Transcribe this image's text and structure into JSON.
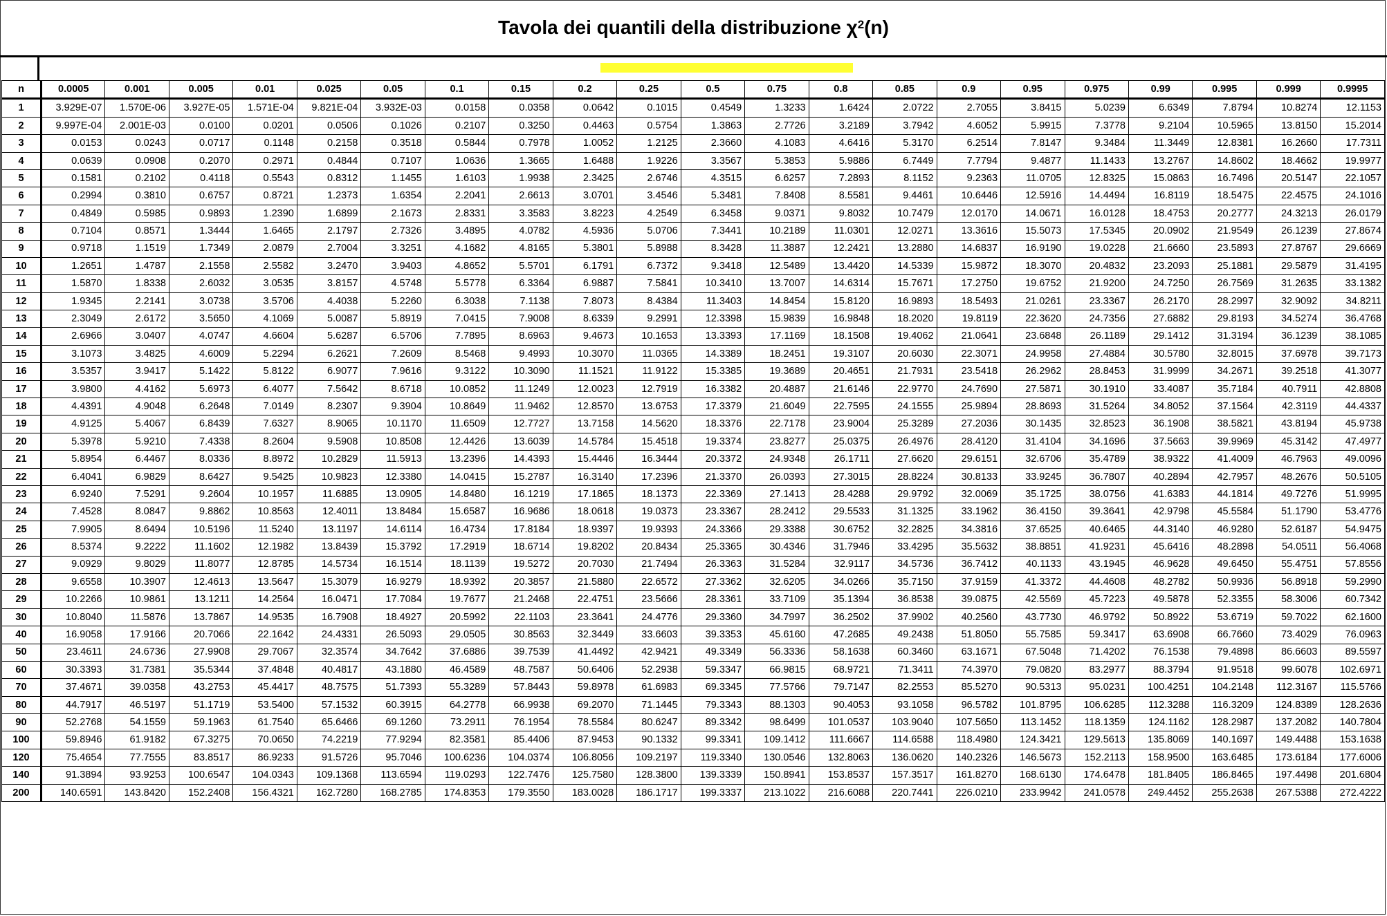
{
  "title": {
    "prefix": "Tavola dei quantili della distribuzione χ",
    "sup": "2",
    "suffix": "(n)"
  },
  "highlight_color": "#ffff33",
  "header": {
    "n_label": "n",
    "probabilities": [
      "0.0005",
      "0.001",
      "0.005",
      "0.01",
      "0.025",
      "0.05",
      "0.1",
      "0.15",
      "0.2",
      "0.25",
      "0.5",
      "0.75",
      "0.8",
      "0.85",
      "0.9",
      "0.95",
      "0.975",
      "0.99",
      "0.995",
      "0.999",
      "0.9995"
    ]
  },
  "rows": [
    {
      "n": "1",
      "values": [
        "3.929E-07",
        "1.570E-06",
        "3.927E-05",
        "1.571E-04",
        "9.821E-04",
        "3.932E-03",
        "0.0158",
        "0.0358",
        "0.0642",
        "0.1015",
        "0.4549",
        "1.3233",
        "1.6424",
        "2.0722",
        "2.7055",
        "3.8415",
        "5.0239",
        "6.6349",
        "7.8794",
        "10.8274",
        "12.1153"
      ]
    },
    {
      "n": "2",
      "values": [
        "9.997E-04",
        "2.001E-03",
        "0.0100",
        "0.0201",
        "0.0506",
        "0.1026",
        "0.2107",
        "0.3250",
        "0.4463",
        "0.5754",
        "1.3863",
        "2.7726",
        "3.2189",
        "3.7942",
        "4.6052",
        "5.9915",
        "7.3778",
        "9.2104",
        "10.5965",
        "13.8150",
        "15.2014"
      ]
    },
    {
      "n": "3",
      "values": [
        "0.0153",
        "0.0243",
        "0.0717",
        "0.1148",
        "0.2158",
        "0.3518",
        "0.5844",
        "0.7978",
        "1.0052",
        "1.2125",
        "2.3660",
        "4.1083",
        "4.6416",
        "5.3170",
        "6.2514",
        "7.8147",
        "9.3484",
        "11.3449",
        "12.8381",
        "16.2660",
        "17.7311"
      ]
    },
    {
      "n": "4",
      "values": [
        "0.0639",
        "0.0908",
        "0.2070",
        "0.2971",
        "0.4844",
        "0.7107",
        "1.0636",
        "1.3665",
        "1.6488",
        "1.9226",
        "3.3567",
        "5.3853",
        "5.9886",
        "6.7449",
        "7.7794",
        "9.4877",
        "11.1433",
        "13.2767",
        "14.8602",
        "18.4662",
        "19.9977"
      ]
    },
    {
      "n": "5",
      "values": [
        "0.1581",
        "0.2102",
        "0.4118",
        "0.5543",
        "0.8312",
        "1.1455",
        "1.6103",
        "1.9938",
        "2.3425",
        "2.6746",
        "4.3515",
        "6.6257",
        "7.2893",
        "8.1152",
        "9.2363",
        "11.0705",
        "12.8325",
        "15.0863",
        "16.7496",
        "20.5147",
        "22.1057"
      ]
    },
    {
      "n": "6",
      "values": [
        "0.2994",
        "0.3810",
        "0.6757",
        "0.8721",
        "1.2373",
        "1.6354",
        "2.2041",
        "2.6613",
        "3.0701",
        "3.4546",
        "5.3481",
        "7.8408",
        "8.5581",
        "9.4461",
        "10.6446",
        "12.5916",
        "14.4494",
        "16.8119",
        "18.5475",
        "22.4575",
        "24.1016"
      ]
    },
    {
      "n": "7",
      "values": [
        "0.4849",
        "0.5985",
        "0.9893",
        "1.2390",
        "1.6899",
        "2.1673",
        "2.8331",
        "3.3583",
        "3.8223",
        "4.2549",
        "6.3458",
        "9.0371",
        "9.8032",
        "10.7479",
        "12.0170",
        "14.0671",
        "16.0128",
        "18.4753",
        "20.2777",
        "24.3213",
        "26.0179"
      ]
    },
    {
      "n": "8",
      "values": [
        "0.7104",
        "0.8571",
        "1.3444",
        "1.6465",
        "2.1797",
        "2.7326",
        "3.4895",
        "4.0782",
        "4.5936",
        "5.0706",
        "7.3441",
        "10.2189",
        "11.0301",
        "12.0271",
        "13.3616",
        "15.5073",
        "17.5345",
        "20.0902",
        "21.9549",
        "26.1239",
        "27.8674"
      ]
    },
    {
      "n": "9",
      "values": [
        "0.9718",
        "1.1519",
        "1.7349",
        "2.0879",
        "2.7004",
        "3.3251",
        "4.1682",
        "4.8165",
        "5.3801",
        "5.8988",
        "8.3428",
        "11.3887",
        "12.2421",
        "13.2880",
        "14.6837",
        "16.9190",
        "19.0228",
        "21.6660",
        "23.5893",
        "27.8767",
        "29.6669"
      ]
    },
    {
      "n": "10",
      "values": [
        "1.2651",
        "1.4787",
        "2.1558",
        "2.5582",
        "3.2470",
        "3.9403",
        "4.8652",
        "5.5701",
        "6.1791",
        "6.7372",
        "9.3418",
        "12.5489",
        "13.4420",
        "14.5339",
        "15.9872",
        "18.3070",
        "20.4832",
        "23.2093",
        "25.1881",
        "29.5879",
        "31.4195"
      ]
    },
    {
      "n": "11",
      "values": [
        "1.5870",
        "1.8338",
        "2.6032",
        "3.0535",
        "3.8157",
        "4.5748",
        "5.5778",
        "6.3364",
        "6.9887",
        "7.5841",
        "10.3410",
        "13.7007",
        "14.6314",
        "15.7671",
        "17.2750",
        "19.6752",
        "21.9200",
        "24.7250",
        "26.7569",
        "31.2635",
        "33.1382"
      ]
    },
    {
      "n": "12",
      "values": [
        "1.9345",
        "2.2141",
        "3.0738",
        "3.5706",
        "4.4038",
        "5.2260",
        "6.3038",
        "7.1138",
        "7.8073",
        "8.4384",
        "11.3403",
        "14.8454",
        "15.8120",
        "16.9893",
        "18.5493",
        "21.0261",
        "23.3367",
        "26.2170",
        "28.2997",
        "32.9092",
        "34.8211"
      ]
    },
    {
      "n": "13",
      "values": [
        "2.3049",
        "2.6172",
        "3.5650",
        "4.1069",
        "5.0087",
        "5.8919",
        "7.0415",
        "7.9008",
        "8.6339",
        "9.2991",
        "12.3398",
        "15.9839",
        "16.9848",
        "18.2020",
        "19.8119",
        "22.3620",
        "24.7356",
        "27.6882",
        "29.8193",
        "34.5274",
        "36.4768"
      ]
    },
    {
      "n": "14",
      "values": [
        "2.6966",
        "3.0407",
        "4.0747",
        "4.6604",
        "5.6287",
        "6.5706",
        "7.7895",
        "8.6963",
        "9.4673",
        "10.1653",
        "13.3393",
        "17.1169",
        "18.1508",
        "19.4062",
        "21.0641",
        "23.6848",
        "26.1189",
        "29.1412",
        "31.3194",
        "36.1239",
        "38.1085"
      ]
    },
    {
      "n": "15",
      "values": [
        "3.1073",
        "3.4825",
        "4.6009",
        "5.2294",
        "6.2621",
        "7.2609",
        "8.5468",
        "9.4993",
        "10.3070",
        "11.0365",
        "14.3389",
        "18.2451",
        "19.3107",
        "20.6030",
        "22.3071",
        "24.9958",
        "27.4884",
        "30.5780",
        "32.8015",
        "37.6978",
        "39.7173"
      ]
    },
    {
      "n": "16",
      "values": [
        "3.5357",
        "3.9417",
        "5.1422",
        "5.8122",
        "6.9077",
        "7.9616",
        "9.3122",
        "10.3090",
        "11.1521",
        "11.9122",
        "15.3385",
        "19.3689",
        "20.4651",
        "21.7931",
        "23.5418",
        "26.2962",
        "28.8453",
        "31.9999",
        "34.2671",
        "39.2518",
        "41.3077"
      ]
    },
    {
      "n": "17",
      "values": [
        "3.9800",
        "4.4162",
        "5.6973",
        "6.4077",
        "7.5642",
        "8.6718",
        "10.0852",
        "11.1249",
        "12.0023",
        "12.7919",
        "16.3382",
        "20.4887",
        "21.6146",
        "22.9770",
        "24.7690",
        "27.5871",
        "30.1910",
        "33.4087",
        "35.7184",
        "40.7911",
        "42.8808"
      ]
    },
    {
      "n": "18",
      "values": [
        "4.4391",
        "4.9048",
        "6.2648",
        "7.0149",
        "8.2307",
        "9.3904",
        "10.8649",
        "11.9462",
        "12.8570",
        "13.6753",
        "17.3379",
        "21.6049",
        "22.7595",
        "24.1555",
        "25.9894",
        "28.8693",
        "31.5264",
        "34.8052",
        "37.1564",
        "42.3119",
        "44.4337"
      ]
    },
    {
      "n": "19",
      "values": [
        "4.9125",
        "5.4067",
        "6.8439",
        "7.6327",
        "8.9065",
        "10.1170",
        "11.6509",
        "12.7727",
        "13.7158",
        "14.5620",
        "18.3376",
        "22.7178",
        "23.9004",
        "25.3289",
        "27.2036",
        "30.1435",
        "32.8523",
        "36.1908",
        "38.5821",
        "43.8194",
        "45.9738"
      ]
    },
    {
      "n": "20",
      "values": [
        "5.3978",
        "5.9210",
        "7.4338",
        "8.2604",
        "9.5908",
        "10.8508",
        "12.4426",
        "13.6039",
        "14.5784",
        "15.4518",
        "19.3374",
        "23.8277",
        "25.0375",
        "26.4976",
        "28.4120",
        "31.4104",
        "34.1696",
        "37.5663",
        "39.9969",
        "45.3142",
        "47.4977"
      ]
    },
    {
      "n": "21",
      "values": [
        "5.8954",
        "6.4467",
        "8.0336",
        "8.8972",
        "10.2829",
        "11.5913",
        "13.2396",
        "14.4393",
        "15.4446",
        "16.3444",
        "20.3372",
        "24.9348",
        "26.1711",
        "27.6620",
        "29.6151",
        "32.6706",
        "35.4789",
        "38.9322",
        "41.4009",
        "46.7963",
        "49.0096"
      ]
    },
    {
      "n": "22",
      "values": [
        "6.4041",
        "6.9829",
        "8.6427",
        "9.5425",
        "10.9823",
        "12.3380",
        "14.0415",
        "15.2787",
        "16.3140",
        "17.2396",
        "21.3370",
        "26.0393",
        "27.3015",
        "28.8224",
        "30.8133",
        "33.9245",
        "36.7807",
        "40.2894",
        "42.7957",
        "48.2676",
        "50.5105"
      ]
    },
    {
      "n": "23",
      "values": [
        "6.9240",
        "7.5291",
        "9.2604",
        "10.1957",
        "11.6885",
        "13.0905",
        "14.8480",
        "16.1219",
        "17.1865",
        "18.1373",
        "22.3369",
        "27.1413",
        "28.4288",
        "29.9792",
        "32.0069",
        "35.1725",
        "38.0756",
        "41.6383",
        "44.1814",
        "49.7276",
        "51.9995"
      ]
    },
    {
      "n": "24",
      "values": [
        "7.4528",
        "8.0847",
        "9.8862",
        "10.8563",
        "12.4011",
        "13.8484",
        "15.6587",
        "16.9686",
        "18.0618",
        "19.0373",
        "23.3367",
        "28.2412",
        "29.5533",
        "31.1325",
        "33.1962",
        "36.4150",
        "39.3641",
        "42.9798",
        "45.5584",
        "51.1790",
        "53.4776"
      ]
    },
    {
      "n": "25",
      "values": [
        "7.9905",
        "8.6494",
        "10.5196",
        "11.5240",
        "13.1197",
        "14.6114",
        "16.4734",
        "17.8184",
        "18.9397",
        "19.9393",
        "24.3366",
        "29.3388",
        "30.6752",
        "32.2825",
        "34.3816",
        "37.6525",
        "40.6465",
        "44.3140",
        "46.9280",
        "52.6187",
        "54.9475"
      ]
    },
    {
      "n": "26",
      "values": [
        "8.5374",
        "9.2222",
        "11.1602",
        "12.1982",
        "13.8439",
        "15.3792",
        "17.2919",
        "18.6714",
        "19.8202",
        "20.8434",
        "25.3365",
        "30.4346",
        "31.7946",
        "33.4295",
        "35.5632",
        "38.8851",
        "41.9231",
        "45.6416",
        "48.2898",
        "54.0511",
        "56.4068"
      ]
    },
    {
      "n": "27",
      "values": [
        "9.0929",
        "9.8029",
        "11.8077",
        "12.8785",
        "14.5734",
        "16.1514",
        "18.1139",
        "19.5272",
        "20.7030",
        "21.7494",
        "26.3363",
        "31.5284",
        "32.9117",
        "34.5736",
        "36.7412",
        "40.1133",
        "43.1945",
        "46.9628",
        "49.6450",
        "55.4751",
        "57.8556"
      ]
    },
    {
      "n": "28",
      "values": [
        "9.6558",
        "10.3907",
        "12.4613",
        "13.5647",
        "15.3079",
        "16.9279",
        "18.9392",
        "20.3857",
        "21.5880",
        "22.6572",
        "27.3362",
        "32.6205",
        "34.0266",
        "35.7150",
        "37.9159",
        "41.3372",
        "44.4608",
        "48.2782",
        "50.9936",
        "56.8918",
        "59.2990"
      ]
    },
    {
      "n": "29",
      "values": [
        "10.2266",
        "10.9861",
        "13.1211",
        "14.2564",
        "16.0471",
        "17.7084",
        "19.7677",
        "21.2468",
        "22.4751",
        "23.5666",
        "28.3361",
        "33.7109",
        "35.1394",
        "36.8538",
        "39.0875",
        "42.5569",
        "45.7223",
        "49.5878",
        "52.3355",
        "58.3006",
        "60.7342"
      ]
    },
    {
      "n": "30",
      "values": [
        "10.8040",
        "11.5876",
        "13.7867",
        "14.9535",
        "16.7908",
        "18.4927",
        "20.5992",
        "22.1103",
        "23.3641",
        "24.4776",
        "29.3360",
        "34.7997",
        "36.2502",
        "37.9902",
        "40.2560",
        "43.7730",
        "46.9792",
        "50.8922",
        "53.6719",
        "59.7022",
        "62.1600"
      ]
    },
    {
      "n": "40",
      "values": [
        "16.9058",
        "17.9166",
        "20.7066",
        "22.1642",
        "24.4331",
        "26.5093",
        "29.0505",
        "30.8563",
        "32.3449",
        "33.6603",
        "39.3353",
        "45.6160",
        "47.2685",
        "49.2438",
        "51.8050",
        "55.7585",
        "59.3417",
        "63.6908",
        "66.7660",
        "73.4029",
        "76.0963"
      ]
    },
    {
      "n": "50",
      "values": [
        "23.4611",
        "24.6736",
        "27.9908",
        "29.7067",
        "32.3574",
        "34.7642",
        "37.6886",
        "39.7539",
        "41.4492",
        "42.9421",
        "49.3349",
        "56.3336",
        "58.1638",
        "60.3460",
        "63.1671",
        "67.5048",
        "71.4202",
        "76.1538",
        "79.4898",
        "86.6603",
        "89.5597"
      ]
    },
    {
      "n": "60",
      "values": [
        "30.3393",
        "31.7381",
        "35.5344",
        "37.4848",
        "40.4817",
        "43.1880",
        "46.4589",
        "48.7587",
        "50.6406",
        "52.2938",
        "59.3347",
        "66.9815",
        "68.9721",
        "71.3411",
        "74.3970",
        "79.0820",
        "83.2977",
        "88.3794",
        "91.9518",
        "99.6078",
        "102.6971"
      ]
    },
    {
      "n": "70",
      "values": [
        "37.4671",
        "39.0358",
        "43.2753",
        "45.4417",
        "48.7575",
        "51.7393",
        "55.3289",
        "57.8443",
        "59.8978",
        "61.6983",
        "69.3345",
        "77.5766",
        "79.7147",
        "82.2553",
        "85.5270",
        "90.5313",
        "95.0231",
        "100.4251",
        "104.2148",
        "112.3167",
        "115.5766"
      ]
    },
    {
      "n": "80",
      "values": [
        "44.7917",
        "46.5197",
        "51.1719",
        "53.5400",
        "57.1532",
        "60.3915",
        "64.2778",
        "66.9938",
        "69.2070",
        "71.1445",
        "79.3343",
        "88.1303",
        "90.4053",
        "93.1058",
        "96.5782",
        "101.8795",
        "106.6285",
        "112.3288",
        "116.3209",
        "124.8389",
        "128.2636"
      ]
    },
    {
      "n": "90",
      "values": [
        "52.2768",
        "54.1559",
        "59.1963",
        "61.7540",
        "65.6466",
        "69.1260",
        "73.2911",
        "76.1954",
        "78.5584",
        "80.6247",
        "89.3342",
        "98.6499",
        "101.0537",
        "103.9040",
        "107.5650",
        "113.1452",
        "118.1359",
        "124.1162",
        "128.2987",
        "137.2082",
        "140.7804"
      ]
    },
    {
      "n": "100",
      "values": [
        "59.8946",
        "61.9182",
        "67.3275",
        "70.0650",
        "74.2219",
        "77.9294",
        "82.3581",
        "85.4406",
        "87.9453",
        "90.1332",
        "99.3341",
        "109.1412",
        "111.6667",
        "114.6588",
        "118.4980",
        "124.3421",
        "129.5613",
        "135.8069",
        "140.1697",
        "149.4488",
        "153.1638"
      ]
    },
    {
      "n": "120",
      "values": [
        "75.4654",
        "77.7555",
        "83.8517",
        "86.9233",
        "91.5726",
        "95.7046",
        "100.6236",
        "104.0374",
        "106.8056",
        "109.2197",
        "119.3340",
        "130.0546",
        "132.8063",
        "136.0620",
        "140.2326",
        "146.5673",
        "152.2113",
        "158.9500",
        "163.6485",
        "173.6184",
        "177.6006"
      ]
    },
    {
      "n": "140",
      "values": [
        "91.3894",
        "93.9253",
        "100.6547",
        "104.0343",
        "109.1368",
        "113.6594",
        "119.0293",
        "122.7476",
        "125.7580",
        "128.3800",
        "139.3339",
        "150.8941",
        "153.8537",
        "157.3517",
        "161.8270",
        "168.6130",
        "174.6478",
        "181.8405",
        "186.8465",
        "197.4498",
        "201.6804"
      ]
    },
    {
      "n": "200",
      "values": [
        "140.6591",
        "143.8420",
        "152.2408",
        "156.4321",
        "162.7280",
        "168.2785",
        "174.8353",
        "179.3550",
        "183.0028",
        "186.1717",
        "199.3337",
        "213.1022",
        "216.6088",
        "220.7441",
        "226.0210",
        "233.9942",
        "241.0578",
        "249.4452",
        "255.2638",
        "267.5388",
        "272.4222"
      ]
    }
  ]
}
